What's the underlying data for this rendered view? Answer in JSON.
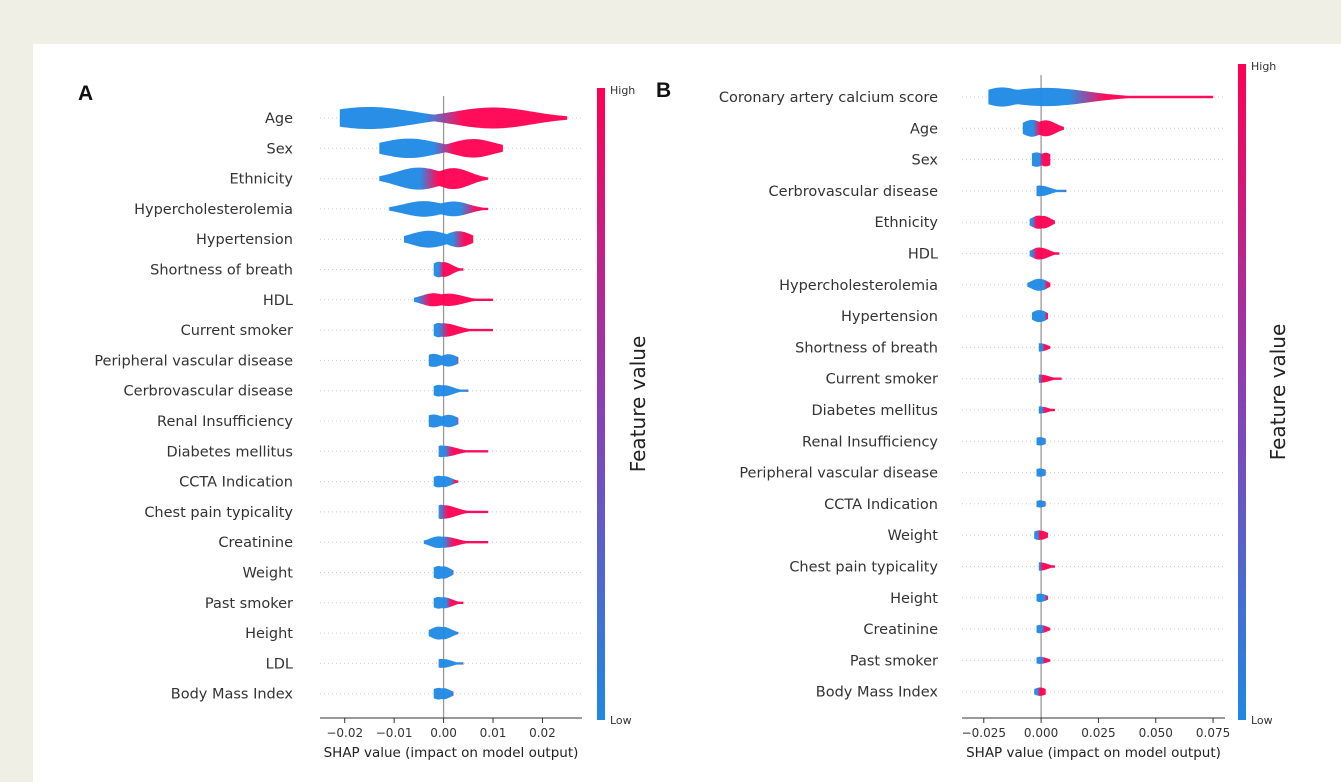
{
  "chart_data": [
    {
      "panel": "A",
      "type": "violin",
      "xlabel": "SHAP value (impact on model output)",
      "xlim": [
        -0.025,
        0.028
      ],
      "xticks": [
        -0.02,
        -0.01,
        0.0,
        0.01,
        0.02
      ],
      "xtick_labels": [
        "−0.02",
        "−0.01",
        "0.00",
        "0.01",
        "0.02"
      ],
      "colorbar": {
        "title": "Feature value",
        "high": "High",
        "low": "Low",
        "high_color": "#ff0052",
        "low_color": "#1e88e5"
      },
      "features": [
        {
          "name": "Age",
          "min": -0.021,
          "max": 0.025,
          "left_blob": -0.015,
          "right_blob": 0.01,
          "width": 0.85,
          "split": 0.0
        },
        {
          "name": "Sex",
          "min": -0.013,
          "max": 0.012,
          "left_blob": -0.007,
          "right_blob": 0.006,
          "width": 0.75,
          "split": 0.0
        },
        {
          "name": "Ethnicity",
          "min": -0.013,
          "max": 0.009,
          "left_blob": -0.005,
          "right_blob": 0.002,
          "width": 0.85,
          "split": -0.003
        },
        {
          "name": "Hypercholesterolemia",
          "min": -0.011,
          "max": 0.009,
          "left_blob": -0.004,
          "right_blob": 0.002,
          "width": 0.6,
          "split": 0.005
        },
        {
          "name": "Hypertension",
          "min": -0.008,
          "max": 0.006,
          "left_blob": -0.003,
          "right_blob": 0.003,
          "width": 0.65,
          "split": 0.003
        },
        {
          "name": "Shortness of breath",
          "min": -0.002,
          "max": 0.004,
          "left_blob": -0.001,
          "right_blob": 0.0,
          "width": 0.6,
          "split": -0.0005
        },
        {
          "name": "HDL",
          "min": -0.006,
          "max": 0.01,
          "left_blob": -0.002,
          "right_blob": 0.001,
          "width": 0.5,
          "split": -0.004
        },
        {
          "name": "Current smoker",
          "min": -0.002,
          "max": 0.01,
          "left_blob": -0.001,
          "right_blob": 0.0,
          "width": 0.55,
          "split": 0.0
        },
        {
          "name": "Peripheral vascular disease",
          "min": -0.003,
          "max": 0.003,
          "left_blob": -0.002,
          "right_blob": 0.001,
          "width": 0.5,
          "split": 0.5
        },
        {
          "name": "Cerbrovascular disease",
          "min": -0.002,
          "max": 0.005,
          "left_blob": -0.001,
          "right_blob": 0.0,
          "width": 0.45,
          "split": 0.5
        },
        {
          "name": "Renal Insufficiency",
          "min": -0.003,
          "max": 0.003,
          "left_blob": -0.002,
          "right_blob": 0.001,
          "width": 0.5,
          "split": 0.5
        },
        {
          "name": "Diabetes mellitus",
          "min": -0.001,
          "max": 0.009,
          "left_blob": -0.0005,
          "right_blob": 0.0,
          "width": 0.45,
          "split": 0.001
        },
        {
          "name": "CCTA Indication",
          "min": -0.002,
          "max": 0.003,
          "left_blob": -0.001,
          "right_blob": 0.0,
          "width": 0.45,
          "split": 0.002
        },
        {
          "name": "Chest pain typicality",
          "min": -0.001,
          "max": 0.009,
          "left_blob": -0.0005,
          "right_blob": 0.0,
          "width": 0.55,
          "split": 0.0
        },
        {
          "name": "Creatinine",
          "min": -0.004,
          "max": 0.009,
          "left_blob": -0.001,
          "right_blob": 0.0,
          "width": 0.45,
          "split": 0.001
        },
        {
          "name": "Weight",
          "min": -0.002,
          "max": 0.002,
          "left_blob": -0.001,
          "right_blob": 0.0,
          "width": 0.5,
          "split": 0.5
        },
        {
          "name": "Past smoker",
          "min": -0.002,
          "max": 0.004,
          "left_blob": -0.001,
          "right_blob": 0.0,
          "width": 0.45,
          "split": 0.001
        },
        {
          "name": "Height",
          "min": -0.003,
          "max": 0.003,
          "left_blob": -0.001,
          "right_blob": 0.0,
          "width": 0.5,
          "split": 0.5
        },
        {
          "name": "LDL",
          "min": -0.001,
          "max": 0.004,
          "left_blob": -0.0005,
          "right_blob": 0.0,
          "width": 0.35,
          "split": 0.5
        },
        {
          "name": "Body Mass Index",
          "min": -0.002,
          "max": 0.002,
          "left_blob": -0.001,
          "right_blob": 0.0,
          "width": 0.45,
          "split": 0.5
        }
      ]
    },
    {
      "panel": "B",
      "type": "violin",
      "xlabel": "SHAP value (impact on model output)",
      "xlim": [
        -0.0345,
        0.0802
      ],
      "xticks": [
        -0.025,
        0.0,
        0.025,
        0.05,
        0.075
      ],
      "xtick_labels": [
        "−0.025",
        "0.000",
        "0.025",
        "0.050",
        "0.075"
      ],
      "colorbar": {
        "title": "Feature value",
        "high": "High",
        "low": "Low",
        "high_color": "#ff0052",
        "low_color": "#1e88e5"
      },
      "features": [
        {
          "name": "Coronary artery calcium score",
          "min": -0.023,
          "max": 0.075,
          "left_blob": -0.017,
          "right_blob": 0.002,
          "width": 0.8,
          "split": 0.02
        },
        {
          "name": "Age",
          "min": -0.008,
          "max": 0.01,
          "left_blob": -0.004,
          "right_blob": 0.002,
          "width": 0.7,
          "split": -0.002
        },
        {
          "name": "Sex",
          "min": -0.004,
          "max": 0.004,
          "left_blob": -0.002,
          "right_blob": 0.002,
          "width": 0.6,
          "split": 0.0
        },
        {
          "name": "Cerbrovascular disease",
          "min": -0.002,
          "max": 0.011,
          "left_blob": -0.001,
          "right_blob": 0.0,
          "width": 0.45,
          "split": 0.5
        },
        {
          "name": "Ethnicity",
          "min": -0.005,
          "max": 0.006,
          "left_blob": -0.001,
          "right_blob": 0.001,
          "width": 0.55,
          "split": -0.003
        },
        {
          "name": "HDL",
          "min": -0.005,
          "max": 0.008,
          "left_blob": -0.001,
          "right_blob": 0.0,
          "width": 0.5,
          "split": -0.003
        },
        {
          "name": "Hypercholesterolemia",
          "min": -0.006,
          "max": 0.004,
          "left_blob": -0.001,
          "right_blob": 0.0,
          "width": 0.5,
          "split": 0.002
        },
        {
          "name": "Hypertension",
          "min": -0.004,
          "max": 0.003,
          "left_blob": -0.001,
          "right_blob": 0.0,
          "width": 0.5,
          "split": 0.002
        },
        {
          "name": "Shortness of breath",
          "min": -0.001,
          "max": 0.004,
          "left_blob": -0.0005,
          "right_blob": 0.0,
          "width": 0.35,
          "split": 0.001
        },
        {
          "name": "Current smoker",
          "min": -0.001,
          "max": 0.009,
          "left_blob": -0.0005,
          "right_blob": 0.0,
          "width": 0.35,
          "split": 0.0
        },
        {
          "name": "Diabetes mellitus",
          "min": -0.001,
          "max": 0.006,
          "left_blob": -0.0005,
          "right_blob": 0.0,
          "width": 0.3,
          "split": 0.001
        },
        {
          "name": "Renal Insufficiency",
          "min": -0.002,
          "max": 0.002,
          "left_blob": -0.0005,
          "right_blob": 0.0,
          "width": 0.35,
          "split": 0.5
        },
        {
          "name": "Peripheral vascular disease",
          "min": -0.002,
          "max": 0.002,
          "left_blob": -0.0005,
          "right_blob": 0.0,
          "width": 0.35,
          "split": 0.5
        },
        {
          "name": "CCTA Indication",
          "min": -0.002,
          "max": 0.002,
          "left_blob": -0.0005,
          "right_blob": 0.0,
          "width": 0.3,
          "split": 0.5
        },
        {
          "name": "Weight",
          "min": -0.003,
          "max": 0.003,
          "left_blob": -0.001,
          "right_blob": 0.0,
          "width": 0.4,
          "split": -0.001
        },
        {
          "name": "Chest pain typicality",
          "min": -0.001,
          "max": 0.006,
          "left_blob": -0.0005,
          "right_blob": 0.0,
          "width": 0.35,
          "split": 0.0
        },
        {
          "name": "Height",
          "min": -0.002,
          "max": 0.003,
          "left_blob": -0.0005,
          "right_blob": 0.0,
          "width": 0.35,
          "split": 0.002
        },
        {
          "name": "Creatinine",
          "min": -0.002,
          "max": 0.004,
          "left_blob": -0.0005,
          "right_blob": 0.0,
          "width": 0.35,
          "split": 0.001
        },
        {
          "name": "Past smoker",
          "min": -0.002,
          "max": 0.004,
          "left_blob": -0.0005,
          "right_blob": 0.0,
          "width": 0.3,
          "split": 0.001
        },
        {
          "name": "Body Mass Index",
          "min": -0.003,
          "max": 0.002,
          "left_blob": -0.0005,
          "right_blob": 0.0,
          "width": 0.35,
          "split": -0.001
        }
      ]
    }
  ]
}
